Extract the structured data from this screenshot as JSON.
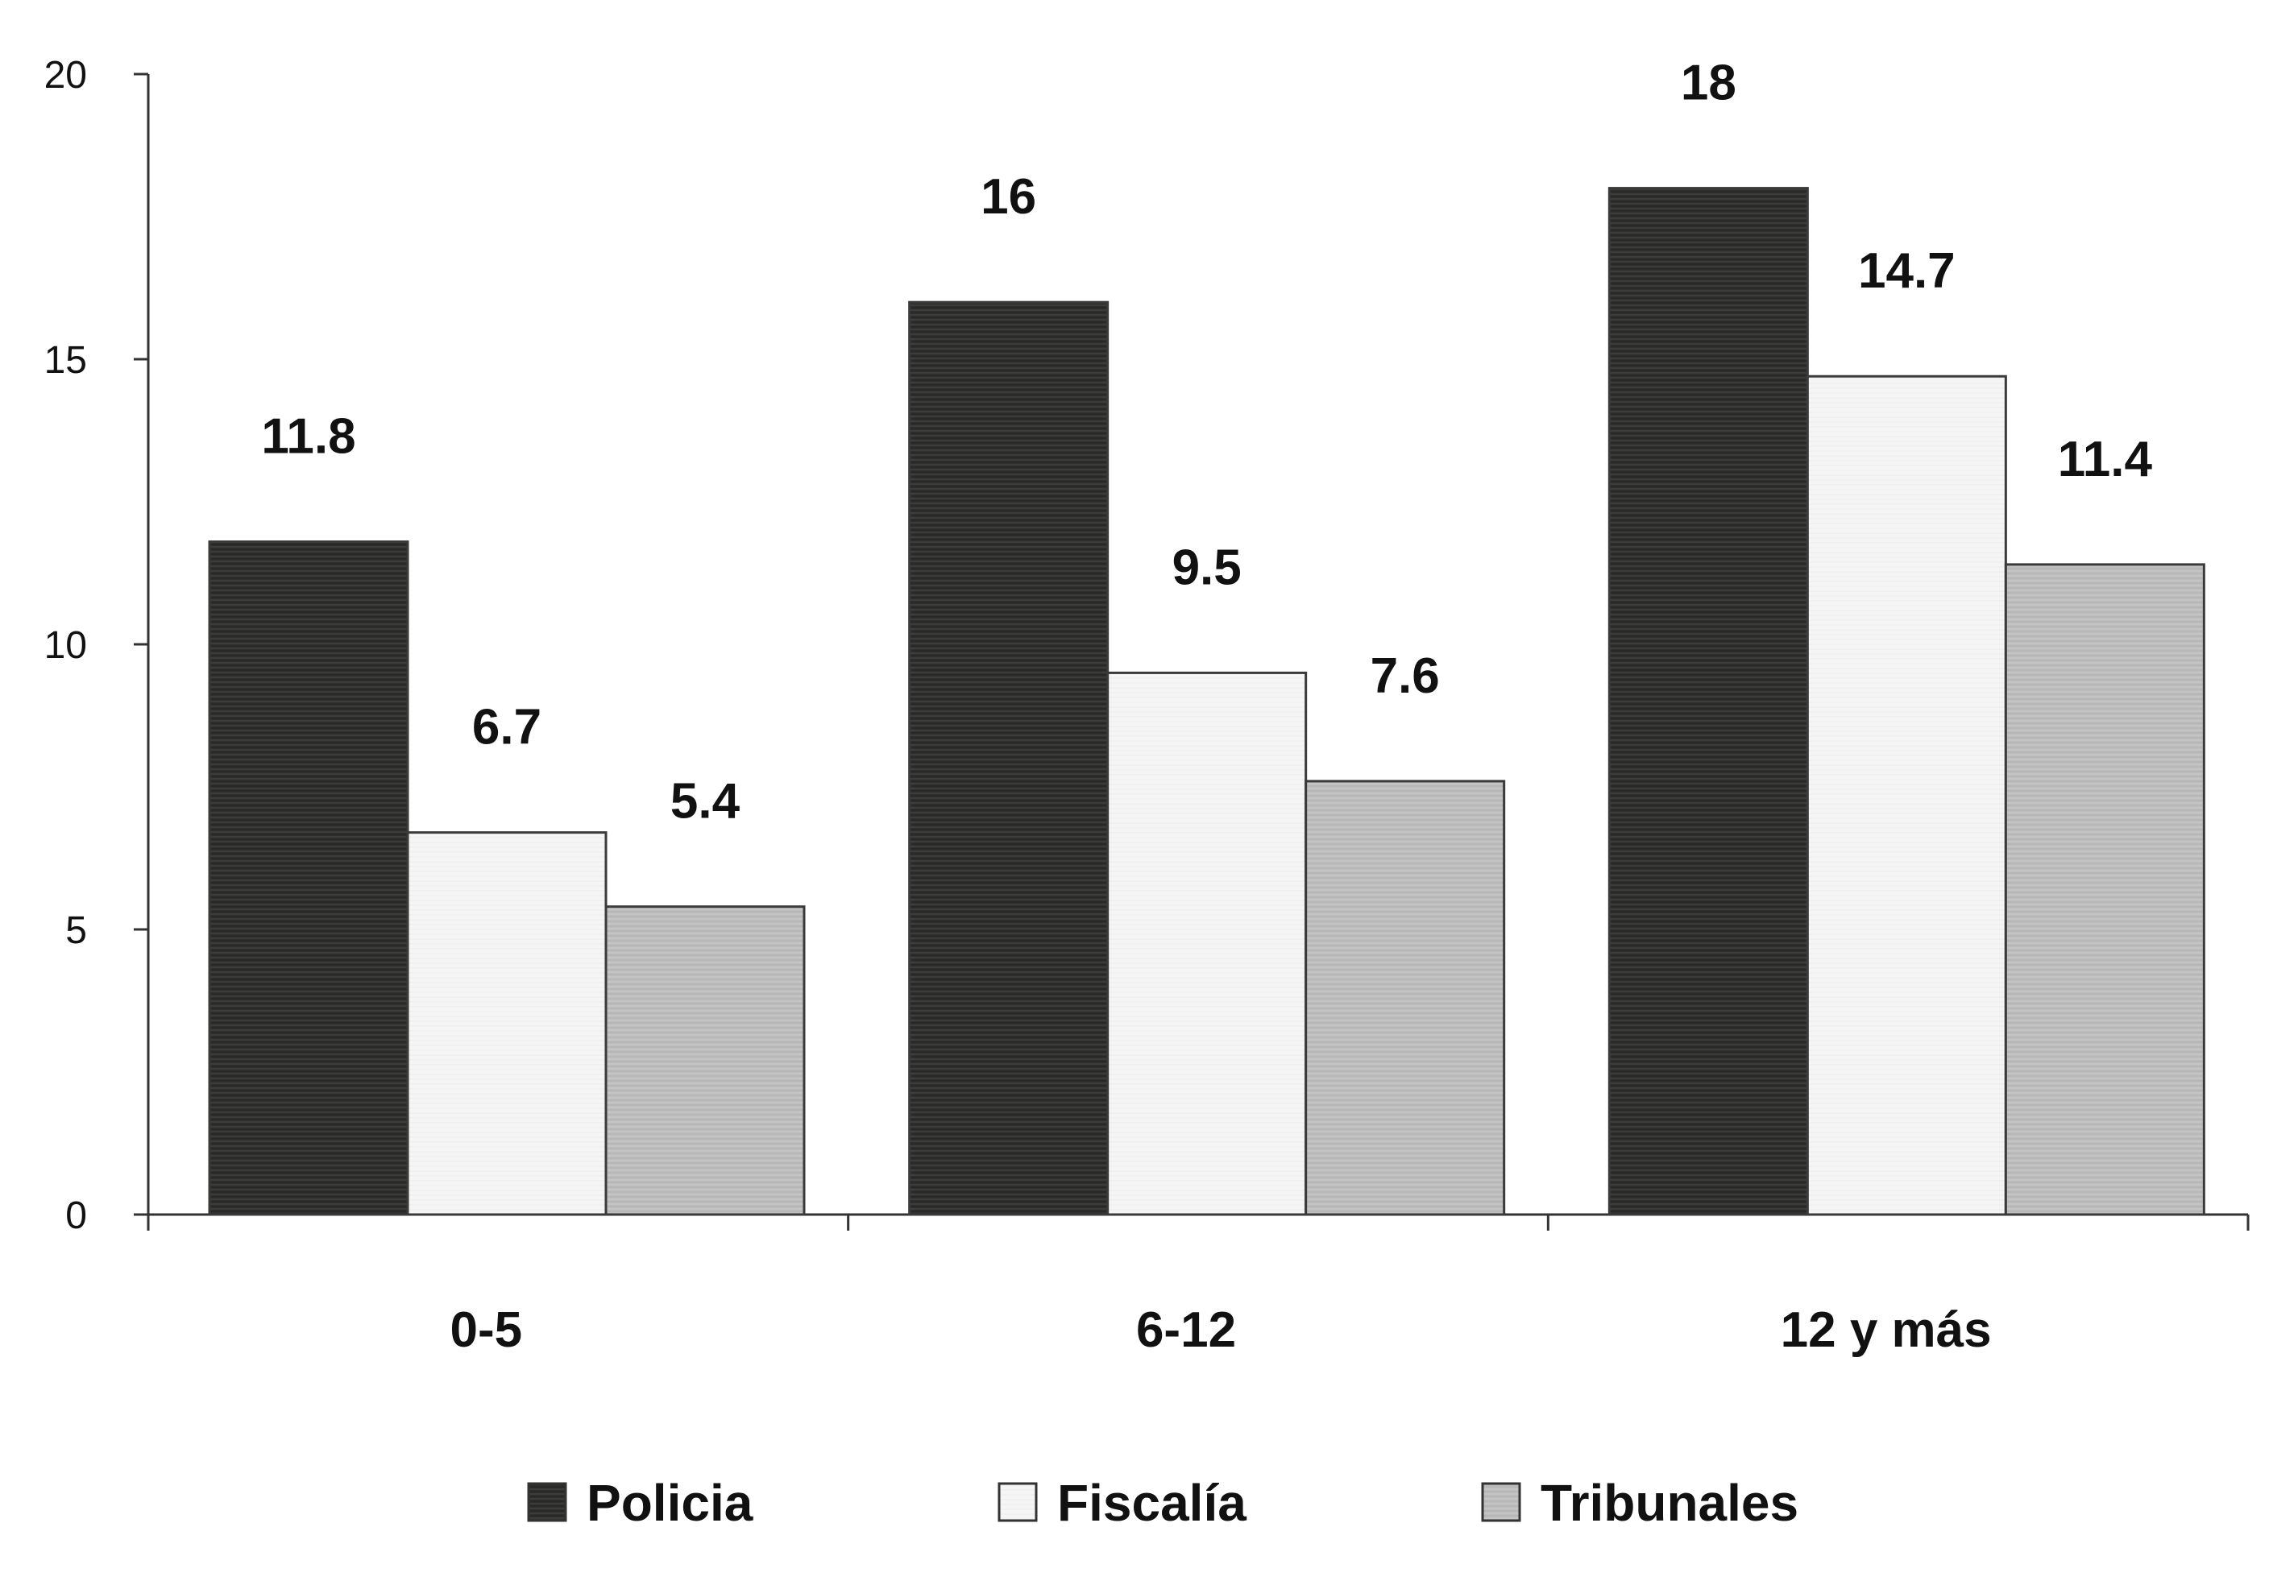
{
  "chart_data": {
    "type": "bar",
    "title": "",
    "xlabel": "",
    "ylabel": "",
    "ylim": [
      0,
      20
    ],
    "yticks": [
      0,
      5,
      10,
      15,
      20
    ],
    "categories": [
      "0-5",
      "6-12",
      "12 y más"
    ],
    "series": [
      {
        "name": "Policia",
        "values": [
          11.8,
          16,
          18
        ],
        "color": "#2f2f2d"
      },
      {
        "name": "Fiscalía",
        "values": [
          6.7,
          9.5,
          14.7
        ],
        "color": "#f4f4f4"
      },
      {
        "name": "Tribunales",
        "values": [
          5.4,
          7.6,
          11.4
        ],
        "color": "#bdbdbd"
      }
    ],
    "data_labels": [
      [
        "11.8",
        "16",
        "18"
      ],
      [
        "6.7",
        "9.5",
        "14.7"
      ],
      [
        "5.4",
        "7.6",
        "11.4"
      ]
    ],
    "grid": false,
    "legend_position": "bottom"
  }
}
